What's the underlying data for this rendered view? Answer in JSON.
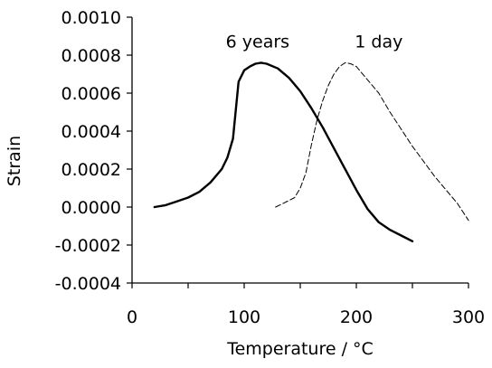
{
  "chart_data": {
    "type": "line",
    "title": "",
    "xlabel": "Temperature / °C",
    "ylabel": "Strain",
    "xlim": [
      0,
      300
    ],
    "ylim": [
      -0.0004,
      0.001
    ],
    "x_ticks": [
      0,
      100,
      200,
      300
    ],
    "x_tick_labels": [
      "0",
      "100",
      "200",
      "300"
    ],
    "y_ticks": [
      0.001,
      0.0008,
      0.0006,
      0.0004,
      0.0002,
      0.0,
      -0.0002,
      -0.0004
    ],
    "y_tick_labels": [
      "0.0010",
      "0.0008",
      "0.0006",
      "0.0004",
      "0.0002",
      "0.0000",
      "-0.0002",
      "-0.0004"
    ],
    "grid": false,
    "legend": "none; series labelled directly on the plot",
    "series": [
      {
        "name": "6 years",
        "line_style": "solid",
        "color": "#000000",
        "x": [
          20,
          30,
          40,
          50,
          60,
          70,
          80,
          85,
          90,
          95,
          100,
          105,
          110,
          115,
          120,
          130,
          140,
          150,
          160,
          170,
          180,
          190,
          200,
          210,
          220,
          230,
          240,
          250
        ],
        "y": [
          0.0,
          1e-05,
          3e-05,
          5e-05,
          8e-05,
          0.00013,
          0.0002,
          0.00026,
          0.00036,
          0.00066,
          0.00072,
          0.00074,
          0.000755,
          0.00076,
          0.000755,
          0.00073,
          0.00068,
          0.00061,
          0.00052,
          0.00042,
          0.00031,
          0.0002,
          9e-05,
          -1e-05,
          -8e-05,
          -0.00012,
          -0.00015,
          -0.00018
        ]
      },
      {
        "name": "1 day",
        "line_style": "dashed",
        "color": "#000000",
        "x": [
          128,
          135,
          145,
          150,
          155,
          160,
          165,
          170,
          175,
          180,
          185,
          190,
          195,
          200,
          210,
          220,
          230,
          240,
          250,
          260,
          270,
          280,
          290,
          300
        ],
        "y": [
          0.0,
          2e-05,
          5e-05,
          0.0001,
          0.00018,
          0.00033,
          0.00046,
          0.00056,
          0.00064,
          0.0007,
          0.00074,
          0.00076,
          0.000755,
          0.00074,
          0.00067,
          0.0006,
          0.0005,
          0.00041,
          0.00032,
          0.00024,
          0.00016,
          9e-05,
          2e-05,
          -7e-05
        ]
      }
    ],
    "annotations": [
      {
        "text": "6 years",
        "x": 112,
        "y": 0.00084
      },
      {
        "text": "1 day",
        "x": 220,
        "y": 0.00084
      }
    ]
  }
}
